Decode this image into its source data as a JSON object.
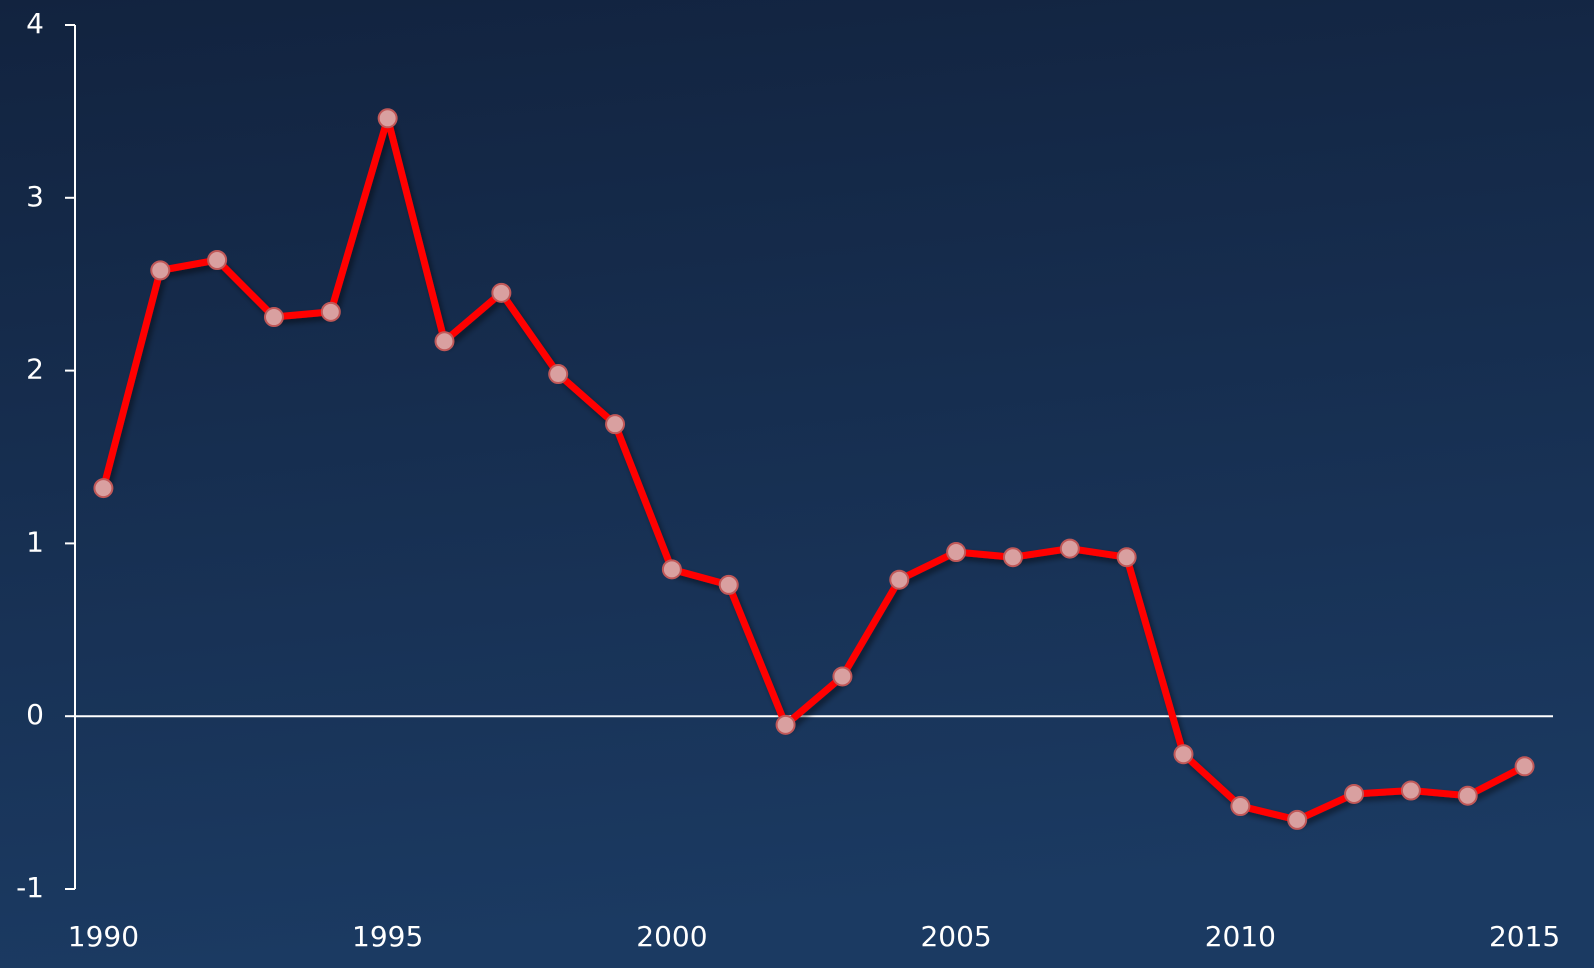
{
  "chart_data": {
    "type": "line",
    "x": [
      1990,
      1991,
      1992,
      1993,
      1994,
      1995,
      1996,
      1997,
      1998,
      1999,
      2000,
      2001,
      2002,
      2003,
      2004,
      2005,
      2006,
      2007,
      2008,
      2009,
      2010,
      2011,
      2012,
      2013,
      2014,
      2015
    ],
    "series": [
      {
        "color": "#ff0000",
        "marker_color": "#d9a0a0",
        "values": [
          1.32,
          2.58,
          2.64,
          2.31,
          2.34,
          3.46,
          2.17,
          2.45,
          1.98,
          1.69,
          0.85,
          0.76,
          -0.05,
          0.23,
          0.79,
          0.95,
          0.92,
          0.97,
          0.92,
          -0.22,
          -0.52,
          -0.6,
          -0.45,
          -0.43,
          -0.46,
          -0.29
        ]
      }
    ],
    "xlim": [
      1989.5,
      2015.5
    ],
    "xticks": [
      1990,
      1995,
      2000,
      2005,
      2010,
      2015
    ],
    "ylim": [
      -1,
      4
    ],
    "yticks": [
      -1,
      0,
      1,
      2,
      3,
      4
    ],
    "grid": false
  }
}
